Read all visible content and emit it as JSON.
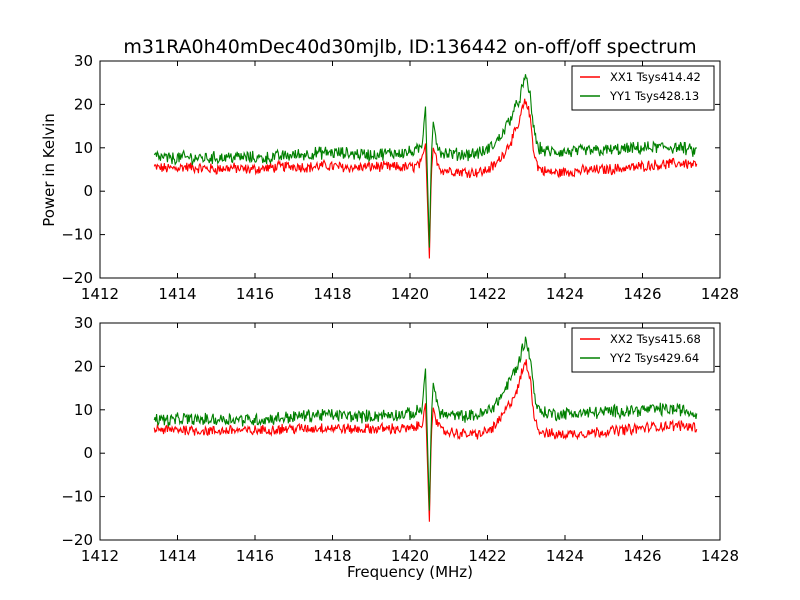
{
  "figure": {
    "title": "m31RA0h40mDec40d30mjlb, ID:136442 on-off/off spectrum",
    "ylabel": "Power in Kelvin",
    "xlabel": "Frequency (MHz)"
  },
  "colors": {
    "xx": "#ff0000",
    "yy": "#008000"
  },
  "chart_data": [
    {
      "type": "line",
      "xlim": [
        1412,
        1428
      ],
      "ylim": [
        -20,
        30
      ],
      "xticks": [
        1412,
        1414,
        1416,
        1418,
        1420,
        1422,
        1424,
        1426,
        1428
      ],
      "yticks": [
        -20,
        -10,
        0,
        10,
        20,
        30
      ],
      "legend": "top-right",
      "ylabel": "Power in Kelvin",
      "series": [
        {
          "name": "XX1 Tsys414.42",
          "color": "#ff0000",
          "x": [
            1413.4,
            1413.8,
            1414.2,
            1414.6,
            1415.0,
            1415.4,
            1415.8,
            1416.2,
            1416.6,
            1417.0,
            1417.4,
            1417.8,
            1418.2,
            1418.6,
            1419.0,
            1419.4,
            1419.8,
            1420.1,
            1420.3,
            1420.4,
            1420.5,
            1420.55,
            1420.6,
            1420.7,
            1420.8,
            1421.0,
            1421.3,
            1421.6,
            1421.9,
            1422.2,
            1422.4,
            1422.6,
            1422.8,
            1422.9,
            1423.0,
            1423.1,
            1423.2,
            1423.3,
            1423.5,
            1423.8,
            1424.2,
            1424.6,
            1425.0,
            1425.4,
            1425.8,
            1426.2,
            1426.6,
            1427.0,
            1427.4
          ],
          "y": [
            5.5,
            5.2,
            5.6,
            5.3,
            5.1,
            5.4,
            5.0,
            5.2,
            5.6,
            5.8,
            5.5,
            5.9,
            5.6,
            5.4,
            5.7,
            5.6,
            5.5,
            5.6,
            6.5,
            11.0,
            -15.5,
            4.0,
            10.0,
            7.0,
            5.0,
            4.8,
            4.5,
            4.4,
            4.5,
            6.0,
            8.5,
            11.5,
            15.0,
            19.0,
            20.8,
            17.0,
            9.0,
            5.5,
            4.5,
            4.2,
            4.6,
            4.8,
            5.0,
            5.2,
            5.5,
            6.0,
            6.2,
            6.5,
            6.0
          ]
        },
        {
          "name": "YY1 Tsys428.13",
          "color": "#008000",
          "x": [
            1413.4,
            1413.8,
            1414.2,
            1414.6,
            1415.0,
            1415.4,
            1415.8,
            1416.2,
            1416.6,
            1417.0,
            1417.4,
            1417.8,
            1418.2,
            1418.6,
            1419.0,
            1419.4,
            1419.8,
            1420.1,
            1420.3,
            1420.4,
            1420.5,
            1420.55,
            1420.6,
            1420.7,
            1420.8,
            1421.0,
            1421.3,
            1421.6,
            1421.9,
            1422.2,
            1422.4,
            1422.6,
            1422.8,
            1422.9,
            1423.0,
            1423.1,
            1423.2,
            1423.3,
            1423.5,
            1423.8,
            1424.2,
            1424.6,
            1425.0,
            1425.4,
            1425.8,
            1426.2,
            1426.6,
            1427.0,
            1427.4
          ],
          "y": [
            8.0,
            7.5,
            7.8,
            7.6,
            7.7,
            7.9,
            7.8,
            7.6,
            8.0,
            8.3,
            8.6,
            8.9,
            8.8,
            8.6,
            8.4,
            8.7,
            8.9,
            9.0,
            10.0,
            19.5,
            -13.0,
            8.0,
            16.0,
            11.0,
            9.0,
            8.6,
            8.5,
            8.6,
            9.0,
            11.0,
            13.5,
            17.0,
            20.5,
            24.0,
            26.0,
            22.0,
            14.0,
            10.0,
            9.2,
            9.0,
            9.1,
            9.3,
            9.4,
            9.6,
            9.8,
            10.0,
            10.2,
            10.0,
            9.0
          ]
        }
      ]
    },
    {
      "type": "line",
      "xlim": [
        1412,
        1428
      ],
      "ylim": [
        -20,
        30
      ],
      "xticks": [
        1412,
        1414,
        1416,
        1418,
        1420,
        1422,
        1424,
        1426,
        1428
      ],
      "yticks": [
        -20,
        -10,
        0,
        10,
        20,
        30
      ],
      "legend": "top-right",
      "xlabel": "Frequency (MHz)",
      "series": [
        {
          "name": "XX2 Tsys415.68",
          "color": "#ff0000",
          "x": [
            1413.4,
            1413.8,
            1414.2,
            1414.6,
            1415.0,
            1415.4,
            1415.8,
            1416.2,
            1416.6,
            1417.0,
            1417.4,
            1417.8,
            1418.2,
            1418.6,
            1419.0,
            1419.4,
            1419.8,
            1420.1,
            1420.3,
            1420.4,
            1420.5,
            1420.55,
            1420.6,
            1420.7,
            1420.8,
            1421.0,
            1421.3,
            1421.6,
            1421.9,
            1422.2,
            1422.4,
            1422.6,
            1422.8,
            1422.9,
            1423.0,
            1423.1,
            1423.2,
            1423.3,
            1423.5,
            1423.8,
            1424.2,
            1424.6,
            1425.0,
            1425.4,
            1425.8,
            1426.2,
            1426.6,
            1427.0,
            1427.4
          ],
          "y": [
            5.5,
            5.3,
            5.5,
            5.2,
            5.0,
            5.4,
            5.1,
            5.3,
            5.6,
            5.7,
            5.6,
            5.9,
            5.7,
            5.5,
            5.6,
            5.7,
            5.6,
            5.7,
            6.6,
            11.5,
            -15.8,
            4.2,
            10.5,
            7.0,
            5.1,
            4.9,
            4.5,
            4.3,
            4.6,
            6.2,
            8.8,
            11.8,
            15.2,
            19.2,
            20.8,
            17.2,
            9.2,
            5.5,
            4.6,
            4.2,
            4.5,
            4.7,
            5.0,
            5.3,
            5.6,
            6.0,
            6.3,
            6.4,
            6.0
          ]
        },
        {
          "name": "YY2 Tsys429.64",
          "color": "#008000",
          "x": [
            1413.4,
            1413.8,
            1414.2,
            1414.6,
            1415.0,
            1415.4,
            1415.8,
            1416.2,
            1416.6,
            1417.0,
            1417.4,
            1417.8,
            1418.2,
            1418.6,
            1419.0,
            1419.4,
            1419.8,
            1420.1,
            1420.3,
            1420.4,
            1420.5,
            1420.55,
            1420.6,
            1420.7,
            1420.8,
            1421.0,
            1421.3,
            1421.6,
            1421.9,
            1422.2,
            1422.4,
            1422.6,
            1422.8,
            1422.9,
            1423.0,
            1423.1,
            1423.2,
            1423.3,
            1423.5,
            1423.8,
            1424.2,
            1424.6,
            1425.0,
            1425.4,
            1425.8,
            1426.2,
            1426.6,
            1427.0,
            1427.4
          ],
          "y": [
            8.0,
            7.6,
            7.9,
            7.7,
            7.8,
            7.9,
            7.7,
            7.7,
            8.1,
            8.4,
            8.7,
            8.9,
            8.7,
            8.5,
            8.5,
            8.8,
            8.9,
            9.1,
            10.2,
            19.5,
            -13.2,
            8.1,
            16.2,
            11.2,
            9.1,
            8.7,
            8.5,
            8.6,
            9.1,
            11.2,
            13.8,
            17.2,
            20.6,
            24.2,
            26.0,
            22.2,
            14.2,
            10.1,
            9.3,
            9.0,
            9.2,
            9.3,
            9.5,
            9.7,
            9.9,
            10.1,
            10.2,
            10.0,
            9.0
          ]
        }
      ]
    }
  ]
}
